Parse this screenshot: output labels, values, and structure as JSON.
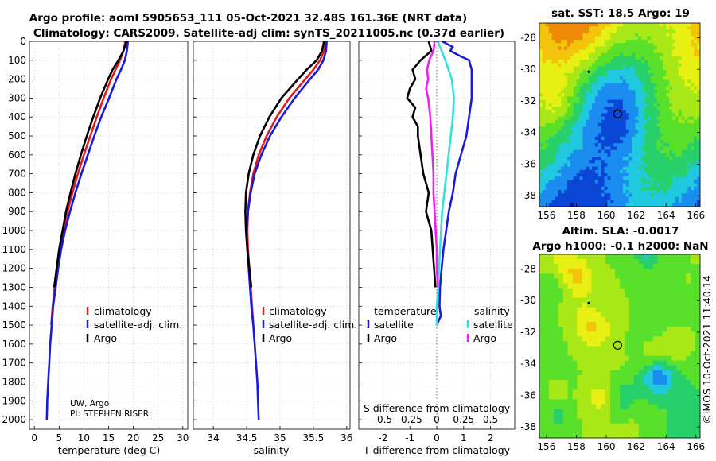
{
  "titles": {
    "line1": "Argo profile: aoml 5905653_111 05-Oct-2021 32.48S 161.36E (NRT data)",
    "line2": "Climatology: CARS2009. Satellite-adj clim: synTS_20211005.nc (0.37d earlier)"
  },
  "credit": {
    "line1": "UW, Argo",
    "line2": "PI: STEPHEN RISER"
  },
  "timestamp": "©IMOS 10-Oct-2021 11:40:14",
  "colors": {
    "argo": "#000000",
    "climatology": "#e41a1c",
    "satellite": "#1a1adc",
    "sat_salinity": "#33e0e0",
    "argo_salinity": "#ee22ee"
  },
  "chart_data": [
    {
      "type": "line",
      "id": "temperature",
      "xlabel": "temperature (deg C)",
      "xlim": [
        -1,
        31
      ],
      "xticks": [
        0,
        5,
        10,
        15,
        20,
        25,
        30
      ],
      "ylim": [
        0,
        2050
      ],
      "yticks": [
        0,
        100,
        200,
        300,
        400,
        500,
        600,
        700,
        800,
        900,
        1000,
        1100,
        1200,
        1300,
        1400,
        1500,
        1600,
        1700,
        1800,
        1900,
        2000
      ],
      "legend": [
        "climatology",
        "satellite-adj. clim.",
        "Argo"
      ],
      "series": [
        {
          "name": "climatology",
          "color": "#e41a1c",
          "depth": [
            0,
            50,
            100,
            150,
            200,
            300,
            400,
            500,
            600,
            700,
            800,
            900,
            1000,
            1100,
            1200,
            1300,
            1400,
            1500
          ],
          "values": [
            18.4,
            18.0,
            17.3,
            16.4,
            15.5,
            14.0,
            12.6,
            11.3,
            10.0,
            8.8,
            7.7,
            6.7,
            5.9,
            5.2,
            4.6,
            4.1,
            3.7,
            3.4
          ]
        },
        {
          "name": "satellite-adj. clim.",
          "color": "#1a1adc",
          "depth": [
            0,
            50,
            100,
            150,
            200,
            300,
            400,
            500,
            600,
            700,
            800,
            900,
            1000,
            1100,
            1200,
            1300,
            1400,
            1500,
            1600,
            1700,
            1800,
            1900,
            2000
          ],
          "values": [
            18.9,
            18.7,
            18.3,
            17.5,
            16.6,
            15.1,
            13.5,
            12.1,
            10.8,
            9.5,
            8.3,
            7.2,
            6.2,
            5.4,
            4.8,
            4.3,
            3.8,
            3.5,
            3.2,
            3.0,
            2.8,
            2.6,
            2.5
          ]
        },
        {
          "name": "Argo",
          "color": "#000000",
          "depth": [
            0,
            50,
            100,
            150,
            200,
            300,
            400,
            500,
            600,
            700,
            800,
            900,
            1000,
            1100,
            1200,
            1300
          ],
          "values": [
            18.6,
            18.0,
            17.0,
            15.8,
            14.9,
            13.3,
            11.9,
            10.6,
            9.4,
            8.3,
            7.3,
            6.4,
            5.7,
            5.0,
            4.5,
            4.0
          ]
        }
      ]
    },
    {
      "type": "line",
      "id": "salinity",
      "xlabel": "salinity",
      "xlim": [
        33.7,
        36.05
      ],
      "xticks": [
        34,
        34.5,
        35,
        35.5,
        36
      ],
      "ylim": [
        0,
        2050
      ],
      "legend": [
        "climatology",
        "satellite-adj. clim.",
        "Argo"
      ],
      "series": [
        {
          "name": "climatology",
          "color": "#e41a1c",
          "depth": [
            0,
            50,
            100,
            150,
            200,
            300,
            400,
            500,
            600,
            700,
            800,
            900,
            1000,
            1100,
            1200,
            1300,
            1400,
            1500
          ],
          "values": [
            35.68,
            35.66,
            35.6,
            35.5,
            35.38,
            35.14,
            34.95,
            34.8,
            34.68,
            34.6,
            34.55,
            34.52,
            34.51,
            34.52,
            34.54,
            34.56,
            34.58,
            34.6
          ]
        },
        {
          "name": "satellite-adj. clim.",
          "color": "#1a1adc",
          "depth": [
            0,
            50,
            100,
            150,
            200,
            300,
            400,
            500,
            600,
            700,
            800,
            900,
            1000,
            1100,
            1200,
            1300,
            1400,
            1500,
            1600,
            1700,
            1800,
            1900,
            2000
          ],
          "values": [
            35.7,
            35.69,
            35.65,
            35.57,
            35.45,
            35.22,
            35.02,
            34.85,
            34.72,
            34.62,
            34.56,
            34.52,
            34.5,
            34.51,
            34.53,
            34.55,
            34.57,
            34.6,
            34.62,
            34.64,
            34.66,
            34.67,
            34.68
          ]
        },
        {
          "name": "Argo",
          "color": "#000000",
          "depth": [
            0,
            50,
            100,
            150,
            200,
            300,
            400,
            500,
            600,
            700,
            800,
            900,
            1000,
            1100,
            1200,
            1300
          ],
          "values": [
            35.66,
            35.63,
            35.55,
            35.4,
            35.27,
            35.02,
            34.84,
            34.7,
            34.6,
            34.53,
            34.49,
            34.48,
            34.49,
            34.51,
            34.54,
            34.57
          ]
        }
      ]
    },
    {
      "type": "line",
      "id": "difference",
      "xlabel": "T difference from climatology",
      "xlabel_top": "S difference from climatology",
      "xlim": [
        -2.9,
        2.9
      ],
      "xticks": [
        -2,
        -1,
        0,
        1,
        2
      ],
      "xticks_s": [
        "-0.5",
        "-0.25",
        "0",
        "0.25",
        "0.5"
      ],
      "ylim": [
        0,
        2050
      ],
      "legend_temperature": {
        "title": "temperature",
        "items": [
          "satellite",
          "Argo"
        ]
      },
      "legend_salinity": {
        "title": "salinity",
        "items": [
          "satellite",
          "Argo"
        ]
      },
      "series": [
        {
          "name": "temperature satellite",
          "color": "#1a1adc",
          "depth": [
            0,
            30,
            50,
            80,
            100,
            150,
            200,
            300,
            400,
            500,
            600,
            700,
            800,
            900,
            1000,
            1100,
            1200,
            1300,
            1400,
            1450,
            1500
          ],
          "values": [
            0.2,
            0.6,
            0.5,
            0.9,
            1.2,
            1.3,
            1.3,
            1.3,
            1.2,
            1.1,
            0.9,
            0.7,
            0.6,
            0.45,
            0.35,
            0.25,
            0.18,
            0.12,
            0.1,
            0.15,
            0.0
          ]
        },
        {
          "name": "temperature Argo",
          "color": "#000000",
          "depth": [
            0,
            50,
            100,
            150,
            200,
            250,
            300,
            350,
            400,
            450,
            500,
            600,
            700,
            800,
            900,
            1000,
            1100,
            1200,
            1300
          ],
          "values": [
            -0.3,
            -0.2,
            -0.6,
            -0.9,
            -0.8,
            -1.0,
            -1.1,
            -0.8,
            -0.9,
            -0.7,
            -0.7,
            -0.6,
            -0.5,
            -0.3,
            -0.4,
            -0.2,
            -0.15,
            -0.1,
            -0.05
          ]
        },
        {
          "name": "salinity satellite",
          "color": "#33e0e0",
          "depth": [
            0,
            100,
            200,
            300,
            400,
            500,
            600,
            700,
            800,
            900,
            1000,
            1100,
            1200,
            1300,
            1400,
            1500
          ],
          "values": [
            0.01,
            0.08,
            0.14,
            0.16,
            0.15,
            0.13,
            0.11,
            0.09,
            0.07,
            0.05,
            0.04,
            0.03,
            0.02,
            0.015,
            0.0,
            0.0
          ]
        },
        {
          "name": "salinity Argo",
          "color": "#ee22ee",
          "depth": [
            0,
            50,
            100,
            150,
            200,
            250,
            300,
            400,
            500,
            600,
            700,
            800,
            900,
            1000,
            1100,
            1200,
            1300
          ],
          "values": [
            -0.02,
            -0.03,
            -0.07,
            -0.09,
            -0.08,
            -0.1,
            -0.08,
            -0.06,
            -0.05,
            -0.04,
            -0.03,
            -0.03,
            -0.02,
            -0.01,
            0.0,
            0.0,
            0.01
          ]
        }
      ]
    }
  ],
  "maps": [
    {
      "id": "sst",
      "title": "sat. SST: 18.5 Argo: 19",
      "yticks": [
        "-28",
        "-30",
        "-32",
        "-34",
        "-36",
        "-38"
      ],
      "xticks": [
        "156",
        "158",
        "160",
        "162",
        "164",
        "166"
      ]
    },
    {
      "id": "sla",
      "title_line1": "Altim. SLA: -0.0017",
      "title_line2": "Argo h1000: -0.1 h2000: NaN",
      "yticks": [
        "-28",
        "-30",
        "-32",
        "-34",
        "-36",
        "-38"
      ],
      "xticks": [
        "156",
        "158",
        "160",
        "162",
        "164",
        "166"
      ]
    }
  ]
}
